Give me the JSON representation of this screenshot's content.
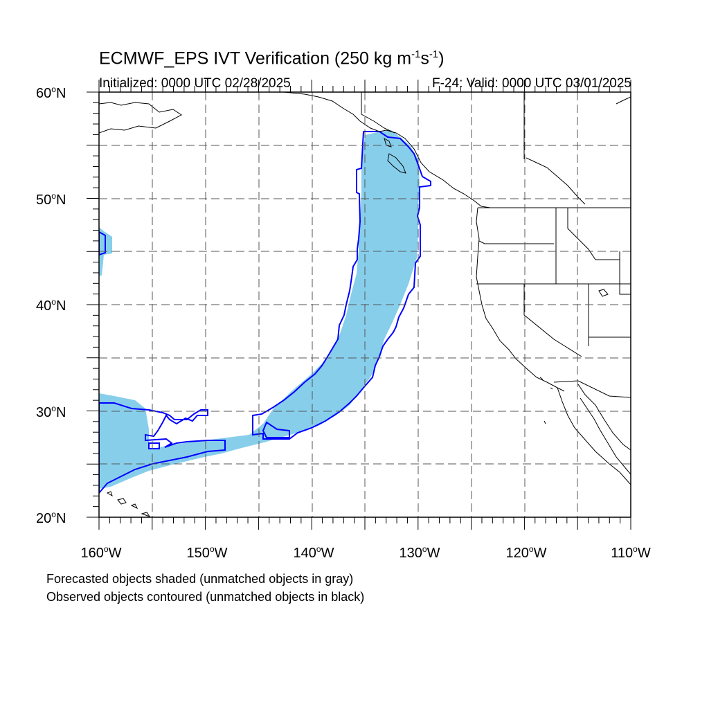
{
  "title": {
    "main": "ECMWF_EPS IVT Verification (250 kg m",
    "exp1": "-1",
    "mid": "s",
    "exp2": "-1",
    "close": ")"
  },
  "init_label": "Initialized: 0000 UTC 02/28/2025",
  "valid_label": "F-24: Valid: 0000 UTC 03/01/2025",
  "lat_labels": [
    "60",
    "50",
    "40",
    "30",
    "20"
  ],
  "lon_labels": [
    "160",
    "150",
    "140",
    "130",
    "120",
    "110"
  ],
  "lat_suffix": "N",
  "lon_suffix": "W",
  "deg_symbol": "o",
  "notes": [
    "Forecasted objects shaded (unmatched objects in gray)",
    "Observed objects contoured (unmatched objects in black)"
  ],
  "colors": {
    "forecast_fill": "#87ceeb",
    "observed_contour": "#0000ff",
    "coast": "#000000",
    "grid": "#555555"
  },
  "map_extent": {
    "lon": [
      -160,
      -110
    ],
    "lat": [
      20,
      60
    ]
  }
}
